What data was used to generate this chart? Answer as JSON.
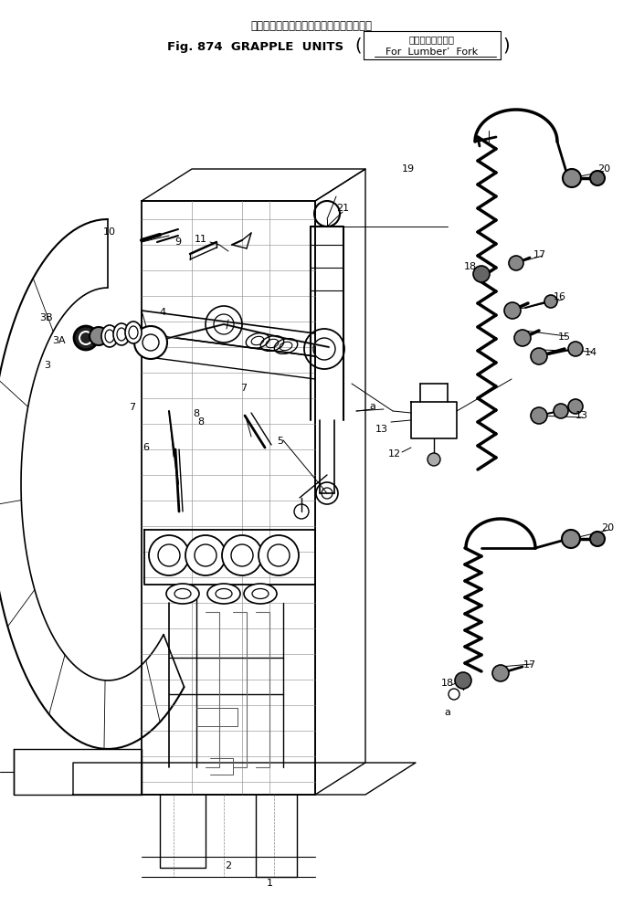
{
  "bg_color": "#ffffff",
  "line_color": "#000000",
  "fig_width": 6.82,
  "fig_height": 9.93,
  "dpi": 100,
  "title_jp": "グラップルユニット（ランバフォーク用）",
  "title_en": "Fig. 874  GRAPPLE  UNITS",
  "title_sub_jp": "（ランバフォーク用）",
  "title_sub_en": "For  Lumber’  Fork",
  "subtitle_box": "(ランバフォーク用\nFor  Lumber’  Fork)"
}
